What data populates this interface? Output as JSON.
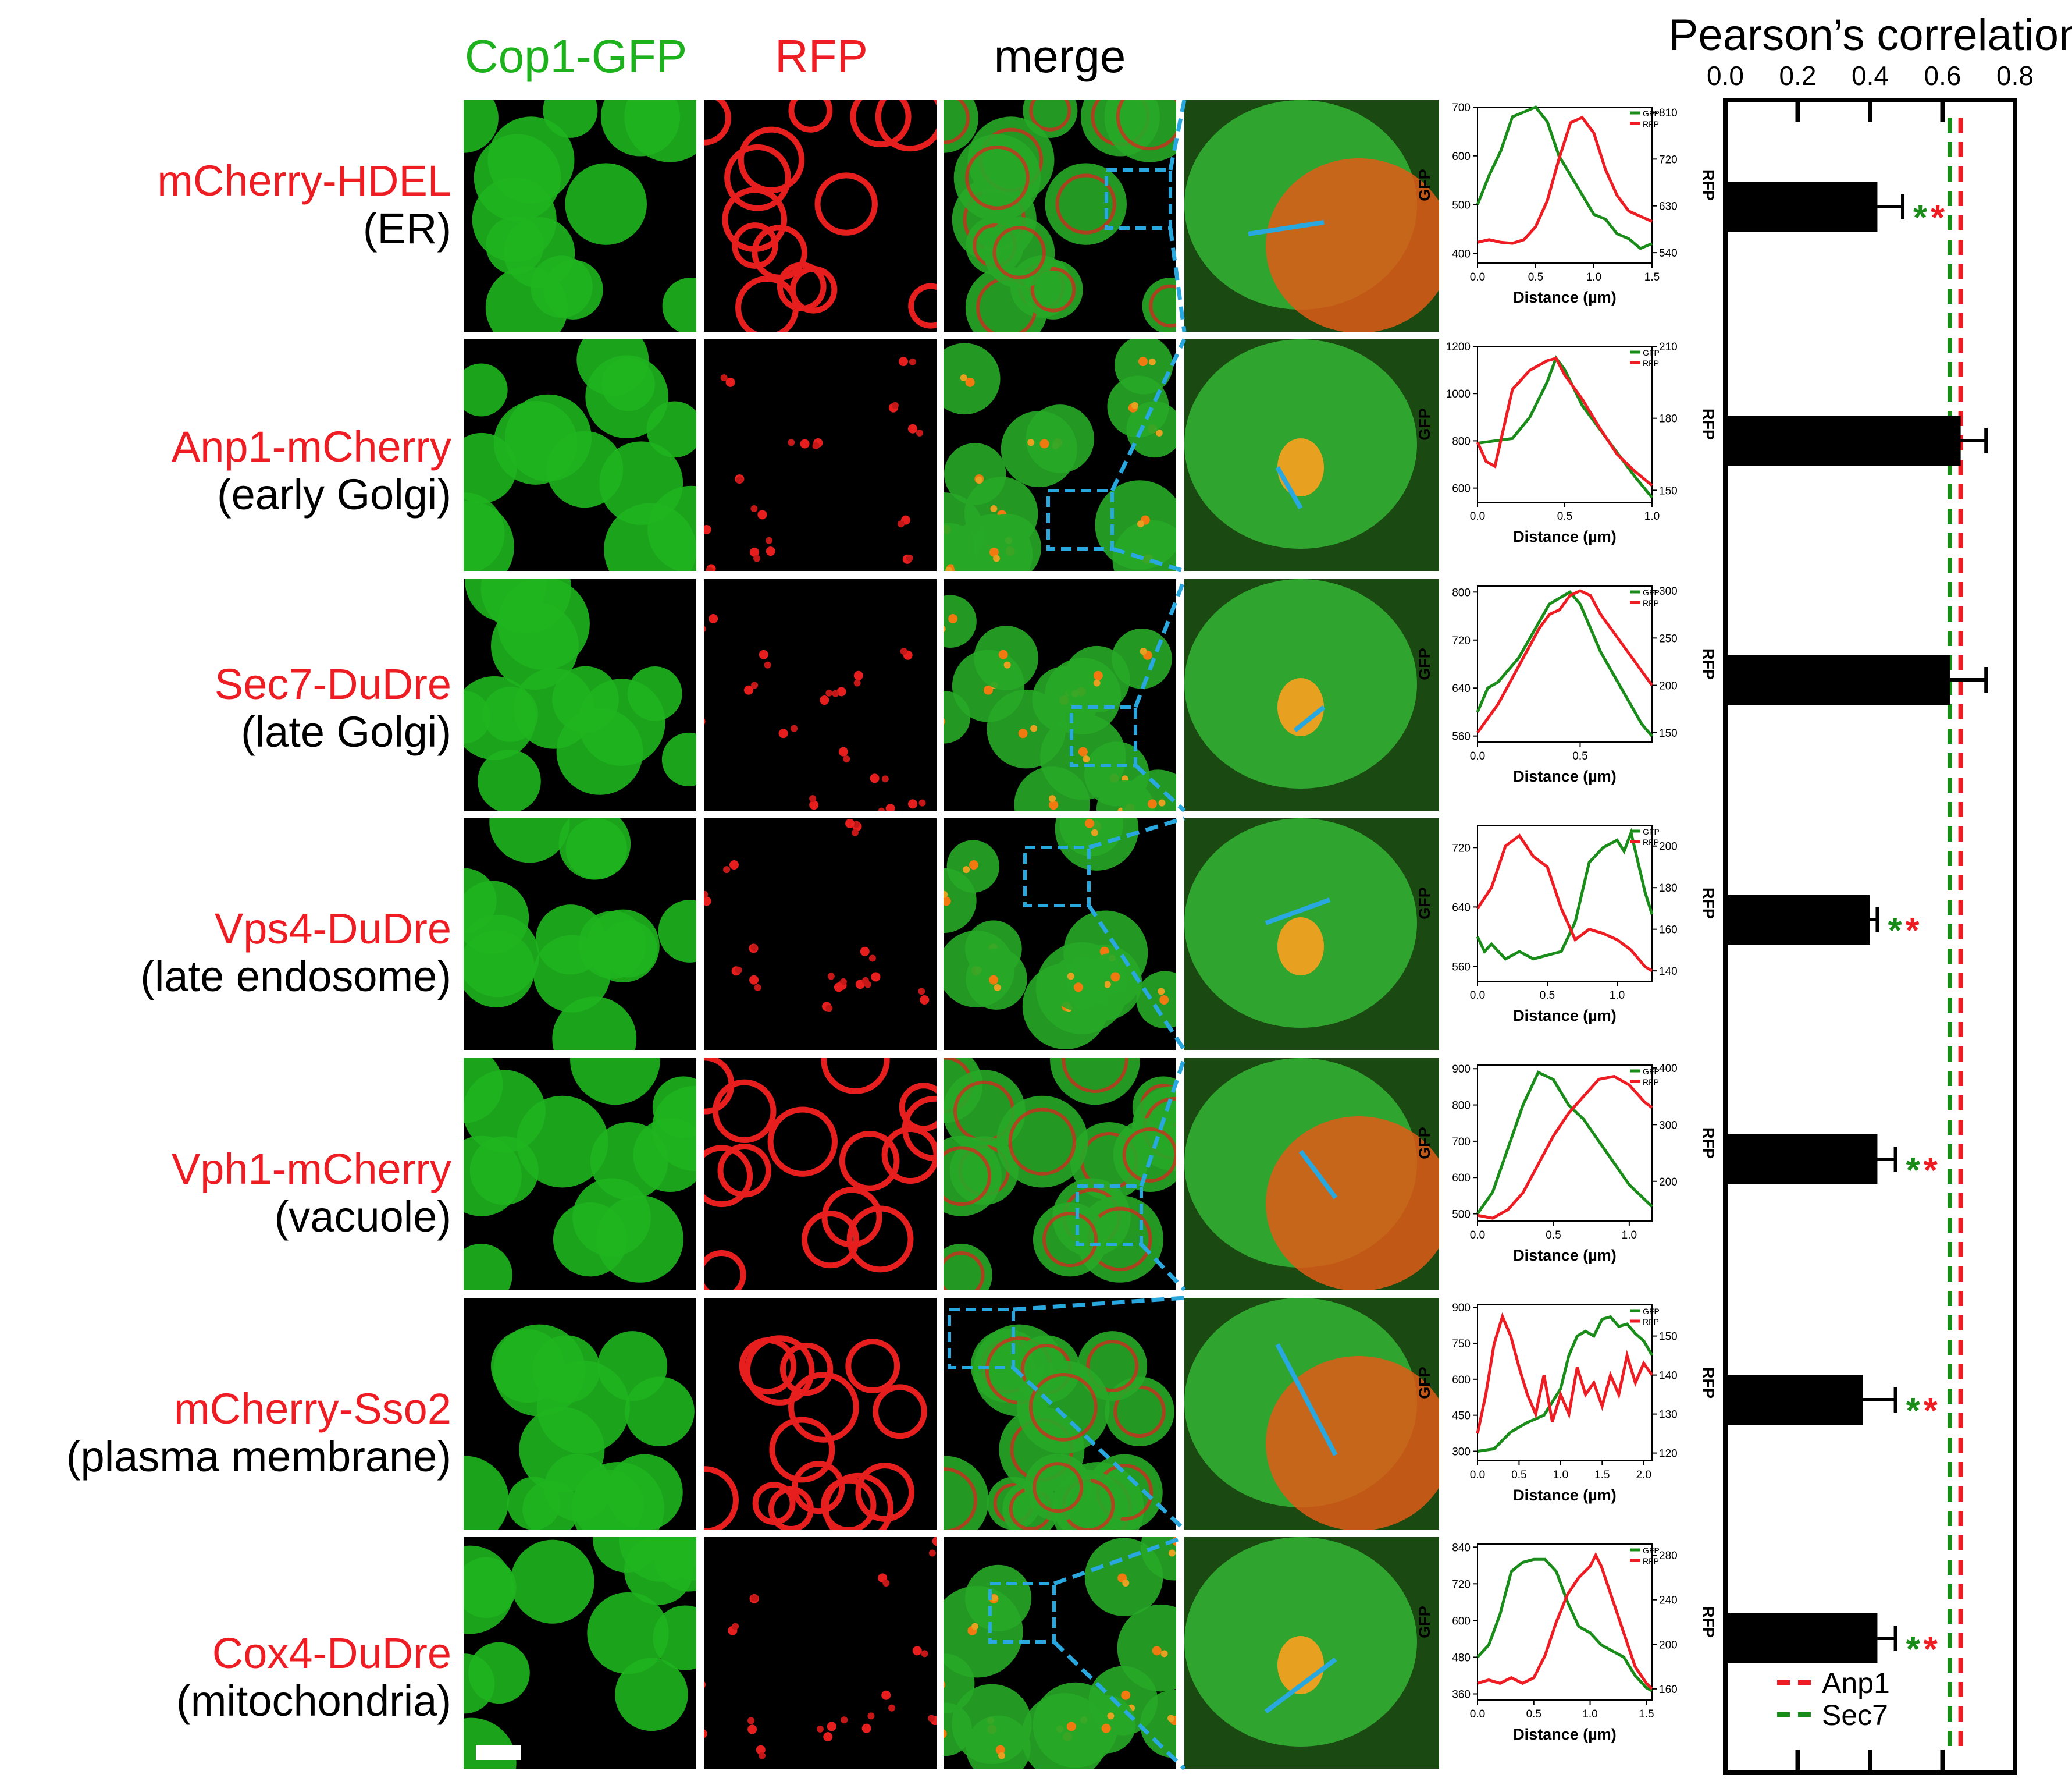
{
  "columns": {
    "gfp": "Cop1-GFP",
    "rfp": "RFP",
    "merge": "merge"
  },
  "rows": [
    {
      "name": "mCherry-HDEL",
      "location": "(ER)"
    },
    {
      "name": "Anp1-mCherry",
      "location": "(early Golgi)"
    },
    {
      "name": "Sec7-DuDre",
      "location": "(late Golgi)"
    },
    {
      "name": "Vps4-DuDre",
      "location": "(late endosome)"
    },
    {
      "name": "Vph1-mCherry",
      "location": "(vacuole)"
    },
    {
      "name": "mCherry-Sso2",
      "location": "(plasma membrane)"
    },
    {
      "name": "Cox4-DuDre",
      "location": "(mitochondria)"
    }
  ],
  "colors": {
    "gfp": "#1a8c1a",
    "rfp": "#ee1d23",
    "line_roi": "#29a8e0",
    "bar": "#000000"
  },
  "profiles": [
    {
      "xlabel": "Distance (µm)",
      "ylabel_left": "GFP",
      "ylabel_right": "RFP",
      "legend": [
        "GFP",
        "RFP"
      ],
      "x_ticks": [
        "0.0",
        "0.5",
        "1.0",
        "1.5"
      ],
      "x_max": 1.5,
      "gfp_ticks": [
        "400",
        "500",
        "600",
        "700"
      ],
      "gfp_range": [
        380,
        700
      ],
      "rfp_ticks": [
        "540",
        "630",
        "720",
        "810"
      ],
      "rfp_range": [
        520,
        820
      ],
      "gfp": [
        [
          0,
          500
        ],
        [
          0.1,
          560
        ],
        [
          0.2,
          610
        ],
        [
          0.3,
          680
        ],
        [
          0.4,
          690
        ],
        [
          0.5,
          700
        ],
        [
          0.6,
          670
        ],
        [
          0.7,
          600
        ],
        [
          0.8,
          560
        ],
        [
          0.9,
          520
        ],
        [
          1.0,
          480
        ],
        [
          1.1,
          470
        ],
        [
          1.2,
          440
        ],
        [
          1.3,
          430
        ],
        [
          1.4,
          410
        ],
        [
          1.5,
          420
        ]
      ],
      "rfp": [
        [
          0,
          560
        ],
        [
          0.1,
          565
        ],
        [
          0.2,
          560
        ],
        [
          0.3,
          558
        ],
        [
          0.4,
          565
        ],
        [
          0.5,
          590
        ],
        [
          0.6,
          640
        ],
        [
          0.7,
          720
        ],
        [
          0.8,
          790
        ],
        [
          0.9,
          800
        ],
        [
          1.0,
          770
        ],
        [
          1.1,
          700
        ],
        [
          1.2,
          650
        ],
        [
          1.3,
          620
        ],
        [
          1.4,
          610
        ],
        [
          1.5,
          600
        ]
      ]
    },
    {
      "xlabel": "Distance (µm)",
      "ylabel_left": "GFP",
      "ylabel_right": "RFP",
      "legend": [
        "GFP",
        "RFP"
      ],
      "x_ticks": [
        "0.0",
        "0.5",
        "1.0"
      ],
      "x_max": 1.0,
      "gfp_ticks": [
        "600",
        "800",
        "1000",
        "1200"
      ],
      "gfp_range": [
        540,
        1200
      ],
      "rfp_ticks": [
        "150",
        "180",
        "210"
      ],
      "rfp_range": [
        145,
        210
      ],
      "gfp": [
        [
          0,
          790
        ],
        [
          0.1,
          800
        ],
        [
          0.2,
          810
        ],
        [
          0.3,
          900
        ],
        [
          0.4,
          1050
        ],
        [
          0.45,
          1150
        ],
        [
          0.5,
          1100
        ],
        [
          0.6,
          950
        ],
        [
          0.7,
          850
        ],
        [
          0.8,
          750
        ],
        [
          0.9,
          650
        ],
        [
          1.0,
          560
        ]
      ],
      "rfp": [
        [
          0,
          170
        ],
        [
          0.05,
          162
        ],
        [
          0.1,
          160
        ],
        [
          0.2,
          192
        ],
        [
          0.3,
          200
        ],
        [
          0.4,
          204
        ],
        [
          0.45,
          205
        ],
        [
          0.5,
          198
        ],
        [
          0.6,
          188
        ],
        [
          0.7,
          176
        ],
        [
          0.8,
          165
        ],
        [
          0.9,
          158
        ],
        [
          1.0,
          152
        ]
      ]
    },
    {
      "xlabel": "Distance (µm)",
      "ylabel_left": "GFP",
      "ylabel_right": "RFP",
      "legend": [
        "GFP",
        "RFP"
      ],
      "x_ticks": [
        "0.0",
        "0.5"
      ],
      "x_max": 0.85,
      "gfp_ticks": [
        "560",
        "640",
        "720",
        "800"
      ],
      "gfp_range": [
        550,
        810
      ],
      "rfp_ticks": [
        "150",
        "200",
        "250",
        "300"
      ],
      "rfp_range": [
        140,
        305
      ],
      "gfp": [
        [
          0,
          600
        ],
        [
          0.05,
          640
        ],
        [
          0.1,
          650
        ],
        [
          0.2,
          690
        ],
        [
          0.3,
          750
        ],
        [
          0.35,
          780
        ],
        [
          0.4,
          790
        ],
        [
          0.45,
          800
        ],
        [
          0.5,
          780
        ],
        [
          0.55,
          740
        ],
        [
          0.6,
          700
        ],
        [
          0.7,
          640
        ],
        [
          0.8,
          580
        ],
        [
          0.85,
          560
        ]
      ],
      "rfp": [
        [
          0,
          150
        ],
        [
          0.05,
          165
        ],
        [
          0.1,
          180
        ],
        [
          0.2,
          220
        ],
        [
          0.3,
          260
        ],
        [
          0.35,
          275
        ],
        [
          0.4,
          280
        ],
        [
          0.45,
          295
        ],
        [
          0.5,
          300
        ],
        [
          0.55,
          295
        ],
        [
          0.6,
          275
        ],
        [
          0.7,
          245
        ],
        [
          0.8,
          215
        ],
        [
          0.85,
          200
        ]
      ]
    },
    {
      "xlabel": "Distance (µm)",
      "ylabel_left": "GFP",
      "ylabel_right": "RFP",
      "legend": [
        "GFP",
        "RFP"
      ],
      "x_ticks": [
        "0.0",
        "0.5",
        "1.0"
      ],
      "x_max": 1.25,
      "gfp_ticks": [
        "560",
        "640",
        "720"
      ],
      "gfp_range": [
        540,
        750
      ],
      "rfp_ticks": [
        "140",
        "160",
        "180",
        "200"
      ],
      "rfp_range": [
        135,
        210
      ],
      "gfp": [
        [
          0,
          600
        ],
        [
          0.05,
          580
        ],
        [
          0.1,
          590
        ],
        [
          0.2,
          570
        ],
        [
          0.3,
          580
        ],
        [
          0.4,
          570
        ],
        [
          0.5,
          575
        ],
        [
          0.6,
          580
        ],
        [
          0.7,
          620
        ],
        [
          0.8,
          700
        ],
        [
          0.9,
          720
        ],
        [
          1.0,
          730
        ],
        [
          1.05,
          715
        ],
        [
          1.1,
          740
        ],
        [
          1.15,
          700
        ],
        [
          1.2,
          660
        ],
        [
          1.25,
          630
        ]
      ],
      "rfp": [
        [
          0,
          170
        ],
        [
          0.1,
          180
        ],
        [
          0.2,
          200
        ],
        [
          0.3,
          205
        ],
        [
          0.4,
          195
        ],
        [
          0.5,
          190
        ],
        [
          0.6,
          170
        ],
        [
          0.7,
          155
        ],
        [
          0.8,
          160
        ],
        [
          0.9,
          158
        ],
        [
          1.0,
          155
        ],
        [
          1.1,
          150
        ],
        [
          1.2,
          142
        ],
        [
          1.25,
          140
        ]
      ]
    },
    {
      "xlabel": "Distance (µm)",
      "ylabel_left": "GFP",
      "ylabel_right": "RFP",
      "legend": [
        "GFP",
        "RFP"
      ],
      "x_ticks": [
        "0.0",
        "0.5",
        "1.0"
      ],
      "x_max": 1.15,
      "gfp_ticks": [
        "500",
        "600",
        "700",
        "800",
        "900"
      ],
      "gfp_range": [
        480,
        910
      ],
      "rfp_ticks": [
        "200",
        "300",
        "400"
      ],
      "rfp_range": [
        130,
        405
      ],
      "gfp": [
        [
          0,
          500
        ],
        [
          0.1,
          560
        ],
        [
          0.2,
          680
        ],
        [
          0.3,
          800
        ],
        [
          0.4,
          890
        ],
        [
          0.5,
          870
        ],
        [
          0.6,
          800
        ],
        [
          0.7,
          760
        ],
        [
          0.8,
          700
        ],
        [
          0.9,
          640
        ],
        [
          1.0,
          580
        ],
        [
          1.1,
          540
        ],
        [
          1.15,
          520
        ]
      ],
      "rfp": [
        [
          0,
          140
        ],
        [
          0.1,
          135
        ],
        [
          0.2,
          150
        ],
        [
          0.3,
          180
        ],
        [
          0.4,
          230
        ],
        [
          0.5,
          280
        ],
        [
          0.6,
          320
        ],
        [
          0.7,
          350
        ],
        [
          0.8,
          380
        ],
        [
          0.9,
          385
        ],
        [
          1.0,
          370
        ],
        [
          1.1,
          340
        ],
        [
          1.15,
          330
        ]
      ]
    },
    {
      "xlabel": "Distance (µm)",
      "ylabel_left": "GFP",
      "ylabel_right": "RFP",
      "legend": [
        "GFP",
        "RFP"
      ],
      "x_ticks": [
        "0.0",
        "0.5",
        "1.0",
        "1.5",
        "2.0"
      ],
      "x_max": 2.1,
      "gfp_ticks": [
        "300",
        "450",
        "600",
        "750",
        "900"
      ],
      "gfp_range": [
        260,
        910
      ],
      "rfp_ticks": [
        "120",
        "130",
        "140",
        "150"
      ],
      "rfp_range": [
        118,
        158
      ],
      "gfp": [
        [
          0,
          300
        ],
        [
          0.2,
          310
        ],
        [
          0.4,
          380
        ],
        [
          0.6,
          420
        ],
        [
          0.8,
          450
        ],
        [
          1.0,
          560
        ],
        [
          1.1,
          700
        ],
        [
          1.2,
          780
        ],
        [
          1.3,
          800
        ],
        [
          1.4,
          780
        ],
        [
          1.5,
          850
        ],
        [
          1.6,
          860
        ],
        [
          1.7,
          820
        ],
        [
          1.8,
          830
        ],
        [
          1.9,
          790
        ],
        [
          2.0,
          760
        ],
        [
          2.1,
          700
        ]
      ],
      "rfp": [
        [
          0,
          125
        ],
        [
          0.1,
          135
        ],
        [
          0.2,
          148
        ],
        [
          0.3,
          155
        ],
        [
          0.4,
          150
        ],
        [
          0.5,
          142
        ],
        [
          0.6,
          135
        ],
        [
          0.7,
          130
        ],
        [
          0.8,
          140
        ],
        [
          0.9,
          128
        ],
        [
          1.0,
          135
        ],
        [
          1.1,
          130
        ],
        [
          1.2,
          142
        ],
        [
          1.3,
          135
        ],
        [
          1.4,
          138
        ],
        [
          1.5,
          132
        ],
        [
          1.6,
          140
        ],
        [
          1.7,
          135
        ],
        [
          1.8,
          145
        ],
        [
          1.9,
          138
        ],
        [
          2.0,
          143
        ],
        [
          2.1,
          140
        ]
      ]
    },
    {
      "xlabel": "Distance (µm)",
      "ylabel_left": "GFP",
      "ylabel_right": "RFP",
      "legend": [
        "GFP",
        "RFP"
      ],
      "x_ticks": [
        "0.0",
        "0.5",
        "1.0",
        "1.5"
      ],
      "x_max": 1.55,
      "gfp_ticks": [
        "360",
        "480",
        "600",
        "720",
        "840"
      ],
      "gfp_range": [
        340,
        850
      ],
      "rfp_ticks": [
        "160",
        "200",
        "240",
        "280"
      ],
      "rfp_range": [
        150,
        290
      ],
      "gfp": [
        [
          0,
          480
        ],
        [
          0.1,
          520
        ],
        [
          0.2,
          620
        ],
        [
          0.3,
          760
        ],
        [
          0.4,
          790
        ],
        [
          0.5,
          800
        ],
        [
          0.6,
          800
        ],
        [
          0.7,
          760
        ],
        [
          0.8,
          660
        ],
        [
          0.9,
          580
        ],
        [
          1.0,
          560
        ],
        [
          1.1,
          520
        ],
        [
          1.2,
          500
        ],
        [
          1.3,
          480
        ],
        [
          1.4,
          420
        ],
        [
          1.5,
          380
        ],
        [
          1.55,
          370
        ]
      ],
      "rfp": [
        [
          0,
          165
        ],
        [
          0.1,
          168
        ],
        [
          0.2,
          165
        ],
        [
          0.3,
          170
        ],
        [
          0.4,
          165
        ],
        [
          0.5,
          170
        ],
        [
          0.6,
          190
        ],
        [
          0.7,
          220
        ],
        [
          0.8,
          245
        ],
        [
          0.9,
          260
        ],
        [
          1.0,
          270
        ],
        [
          1.05,
          280
        ],
        [
          1.1,
          270
        ],
        [
          1.2,
          240
        ],
        [
          1.3,
          210
        ],
        [
          1.4,
          180
        ],
        [
          1.5,
          165
        ],
        [
          1.55,
          160
        ]
      ]
    }
  ],
  "chart_data": {
    "type": "bar",
    "orientation": "horizontal",
    "title": "Pearson’s correlation",
    "x_ticks": [
      "0.0",
      "0.2",
      "0.4",
      "0.6",
      "0.8"
    ],
    "xlim": [
      0,
      0.8
    ],
    "categories": [
      "mCherry-HDEL",
      "Anp1-mCherry",
      "Sec7-DuDre",
      "Vps4-DuDre",
      "Vph1-mCherry",
      "mCherry-Sso2",
      "Cox4-DuDre"
    ],
    "values": [
      0.42,
      0.65,
      0.62,
      0.4,
      0.42,
      0.38,
      0.42
    ],
    "errors": [
      0.07,
      0.07,
      0.1,
      0.02,
      0.05,
      0.09,
      0.05
    ],
    "significance": [
      "**",
      "",
      "",
      "**",
      "**",
      "**",
      "**"
    ],
    "reference_lines": [
      {
        "name": "Anp1",
        "value": 0.65,
        "color": "#ee1d23"
      },
      {
        "name": "Sec7",
        "value": 0.62,
        "color": "#1a8c1a"
      }
    ],
    "legend_position": "bottom-right"
  }
}
